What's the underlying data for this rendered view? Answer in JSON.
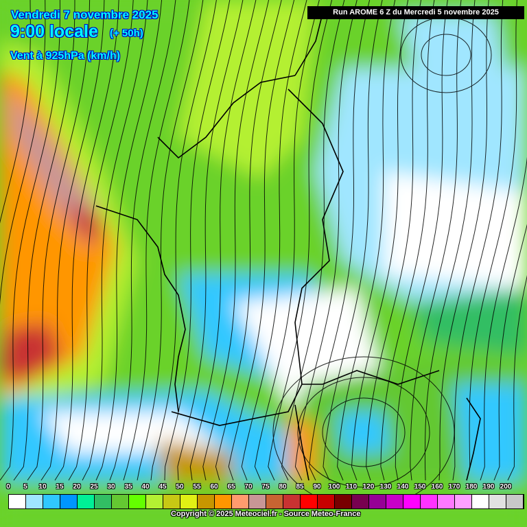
{
  "header": {
    "date": "Vendredi 7 novembre 2025",
    "time": "9:00 locale",
    "lead": "(+ 50h)",
    "variable": "Vent à 925hPa (km/h)",
    "run": "Run AROME 6 Z du Mercredi 5 novembre 2025"
  },
  "legend": {
    "unit": "km/h",
    "labels": [
      "0",
      "5",
      "10",
      "15",
      "20",
      "25",
      "30",
      "35",
      "40",
      "45",
      "50",
      "55",
      "60",
      "65",
      "70",
      "75",
      "80",
      "85",
      "90",
      "100",
      "110",
      "120",
      "130",
      "140",
      "150",
      "160",
      "170",
      "180",
      "190",
      "200"
    ],
    "colors": [
      "#ffffff",
      "#a0e6ff",
      "#30c8ff",
      "#0096ff",
      "#00f096",
      "#32be64",
      "#64c832",
      "#64ff00",
      "#b4f032",
      "#c8c814",
      "#e1f014",
      "#c89600",
      "#ff9600",
      "#ff9b6e",
      "#c89696",
      "#c86432",
      "#c83232",
      "#ff0000",
      "#c80000",
      "#780000",
      "#780050",
      "#960096",
      "#c800c8",
      "#ff00ff",
      "#ff32ff",
      "#ff78ff",
      "#ffa0ff",
      "#ffffff",
      "#e1e1e1",
      "#c8c8c8"
    ]
  },
  "footer": {
    "copyright": "Copyright © 2025 Meteociel.fr - Source Meteo-France"
  }
}
